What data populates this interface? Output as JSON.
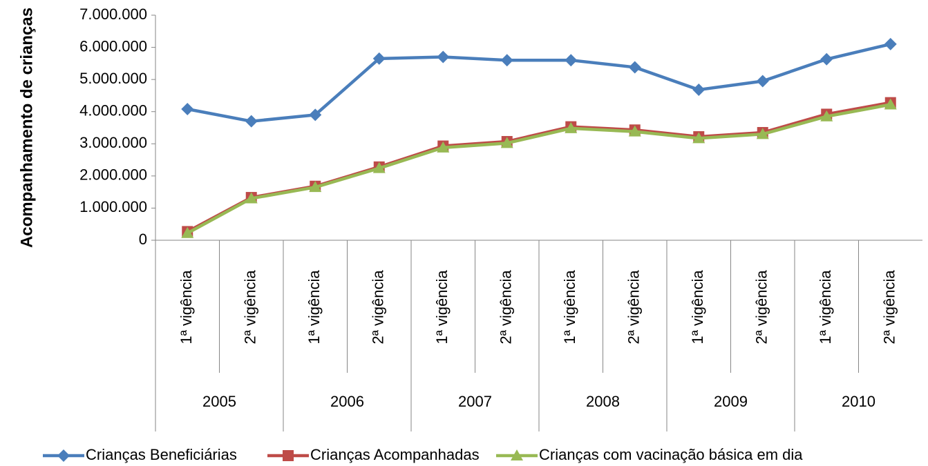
{
  "chart_data": {
    "type": "line",
    "y_label": "Acompanhamento de crianças",
    "categories": [
      "1ª vigência",
      "2ª vigência",
      "1ª vigência",
      "2ª vigência",
      "1ª vigência",
      "2ª vigência",
      "1ª vigência",
      "2ª vigência",
      "1ª vigência",
      "2ª vigência",
      "1ª vigência",
      "2ª vigência"
    ],
    "groups": [
      "2005",
      "2006",
      "2007",
      "2008",
      "2009",
      "2010"
    ],
    "series": [
      {
        "name": "Crianças Beneficiárias",
        "color": "#4a7ebb",
        "marker": "diamond",
        "values": [
          4080000,
          3700000,
          3900000,
          5650000,
          5700000,
          5600000,
          5600000,
          5380000,
          4680000,
          4950000,
          5630000,
          6100000
        ]
      },
      {
        "name": "Crianças Acompanhadas",
        "color": "#be4b48",
        "marker": "square",
        "values": [
          270000,
          1330000,
          1680000,
          2280000,
          2930000,
          3070000,
          3530000,
          3430000,
          3220000,
          3350000,
          3920000,
          4280000
        ]
      },
      {
        "name": "Crianças com vacinação básica em dia",
        "color": "#98b954",
        "marker": "triangle",
        "values": [
          220000,
          1300000,
          1650000,
          2240000,
          2880000,
          3020000,
          3480000,
          3380000,
          3170000,
          3300000,
          3850000,
          4220000
        ]
      }
    ],
    "ylim": [
      0,
      7000000
    ],
    "yticks": [
      0,
      {
        "value": 1000000,
        "label": "1.000.000"
      },
      {
        "value": 2000000,
        "label": "2.000.000"
      },
      {
        "value": 3000000,
        "label": "3.000.000"
      },
      {
        "value": 4000000,
        "label": "4.000.000"
      },
      {
        "value": 5000000,
        "label": "5.000.000"
      },
      {
        "value": 6000000,
        "label": "6.000.000"
      },
      {
        "value": 7000000,
        "label": "7.000.000"
      }
    ],
    "legend": "bottom"
  }
}
